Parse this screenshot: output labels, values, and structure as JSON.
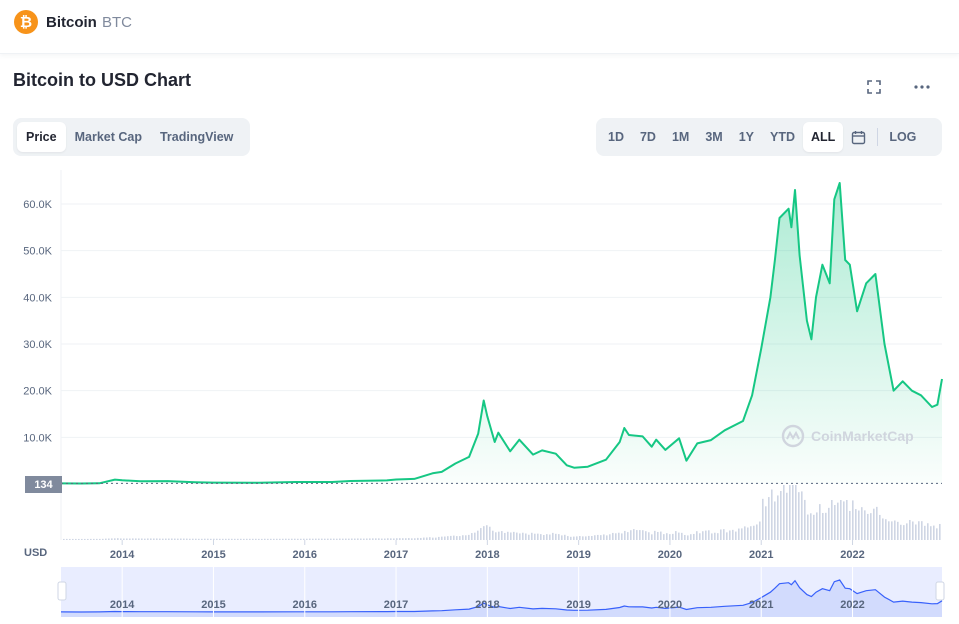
{
  "header": {
    "coin_logo": "₿",
    "coin_name": "Bitcoin",
    "coin_symbol": "BTC",
    "brand_color": "#f7931a"
  },
  "title": "Bitcoin to USD Chart",
  "toolbar": {
    "icons": [
      "expand-icon",
      "more-icon"
    ]
  },
  "view_tabs": [
    {
      "label": "Price",
      "active": true
    },
    {
      "label": "Market Cap",
      "active": false
    },
    {
      "label": "TradingView",
      "active": false
    }
  ],
  "range_tabs": [
    {
      "label": "1D",
      "active": false
    },
    {
      "label": "7D",
      "active": false
    },
    {
      "label": "1M",
      "active": false
    },
    {
      "label": "3M",
      "active": false
    },
    {
      "label": "1Y",
      "active": false
    },
    {
      "label": "YTD",
      "active": false
    },
    {
      "label": "ALL",
      "active": true
    }
  ],
  "log_label": "LOG",
  "currency_label": "USD",
  "current_price_tag": "134",
  "watermark": "CoinMarketCap",
  "colors": {
    "line": "#16c784",
    "area": "#16c784",
    "volume": "#cfd6e4",
    "navigator_fill": "#e3e8ff",
    "navigator_line": "#3861fb"
  },
  "chart_data": {
    "type": "area",
    "ylim": [
      0,
      66000
    ],
    "y_ticks": [
      {
        "value": 10000,
        "label": "10.0K"
      },
      {
        "value": 20000,
        "label": "20.0K"
      },
      {
        "value": 30000,
        "label": "30.0K"
      },
      {
        "value": 40000,
        "label": "40.0K"
      },
      {
        "value": 50000,
        "label": "50.0K"
      },
      {
        "value": 60000,
        "label": "60.0K"
      }
    ],
    "x_ticks": [
      "2014",
      "2015",
      "2016",
      "2017",
      "2018",
      "2019",
      "2020",
      "2021",
      "2022"
    ],
    "xlim": [
      2013.33,
      2022.98
    ],
    "series": [
      {
        "points": [
          [
            2013.33,
            134
          ],
          [
            2013.55,
            100
          ],
          [
            2013.75,
            150
          ],
          [
            2013.92,
            950
          ],
          [
            2014.0,
            800
          ],
          [
            2014.2,
            600
          ],
          [
            2014.5,
            620
          ],
          [
            2014.8,
            380
          ],
          [
            2015.0,
            300
          ],
          [
            2015.5,
            250
          ],
          [
            2015.9,
            420
          ],
          [
            2016.3,
            420
          ],
          [
            2016.5,
            650
          ],
          [
            2016.9,
            780
          ],
          [
            2017.0,
            970
          ],
          [
            2017.2,
            1100
          ],
          [
            2017.4,
            2300
          ],
          [
            2017.5,
            2600
          ],
          [
            2017.65,
            4400
          ],
          [
            2017.8,
            5800
          ],
          [
            2017.9,
            10800
          ],
          [
            2017.96,
            17900
          ],
          [
            2018.0,
            14500
          ],
          [
            2018.08,
            9000
          ],
          [
            2018.12,
            11000
          ],
          [
            2018.25,
            7000
          ],
          [
            2018.35,
            9500
          ],
          [
            2018.5,
            6300
          ],
          [
            2018.6,
            7200
          ],
          [
            2018.75,
            6500
          ],
          [
            2018.87,
            4000
          ],
          [
            2018.95,
            3500
          ],
          [
            2019.1,
            3700
          ],
          [
            2019.3,
            5200
          ],
          [
            2019.45,
            9000
          ],
          [
            2019.5,
            12000
          ],
          [
            2019.55,
            10500
          ],
          [
            2019.7,
            10200
          ],
          [
            2019.8,
            8000
          ],
          [
            2019.85,
            9500
          ],
          [
            2019.95,
            7300
          ],
          [
            2020.1,
            9800
          ],
          [
            2020.18,
            5000
          ],
          [
            2020.3,
            8700
          ],
          [
            2020.45,
            9400
          ],
          [
            2020.6,
            11500
          ],
          [
            2020.8,
            13500
          ],
          [
            2020.9,
            19000
          ],
          [
            2021.0,
            29000
          ],
          [
            2021.1,
            40000
          ],
          [
            2021.15,
            48000
          ],
          [
            2021.2,
            57000
          ],
          [
            2021.3,
            59000
          ],
          [
            2021.33,
            55000
          ],
          [
            2021.37,
            63000
          ],
          [
            2021.42,
            49000
          ],
          [
            2021.5,
            35000
          ],
          [
            2021.55,
            31000
          ],
          [
            2021.6,
            40000
          ],
          [
            2021.67,
            47000
          ],
          [
            2021.75,
            43000
          ],
          [
            2021.8,
            61000
          ],
          [
            2021.86,
            64500
          ],
          [
            2021.92,
            48000
          ],
          [
            2021.97,
            47000
          ],
          [
            2022.05,
            37000
          ],
          [
            2022.15,
            43000
          ],
          [
            2022.25,
            45000
          ],
          [
            2022.35,
            30000
          ],
          [
            2022.45,
            20000
          ],
          [
            2022.55,
            22000
          ],
          [
            2022.65,
            20000
          ],
          [
            2022.75,
            19000
          ],
          [
            2022.87,
            16500
          ],
          [
            2022.93,
            17000
          ],
          [
            2022.98,
            22500
          ]
        ]
      }
    ]
  },
  "navigator": {
    "years": [
      "2014",
      "2015",
      "2016",
      "2017",
      "2018",
      "2019",
      "2020",
      "2021",
      "2022"
    ]
  }
}
